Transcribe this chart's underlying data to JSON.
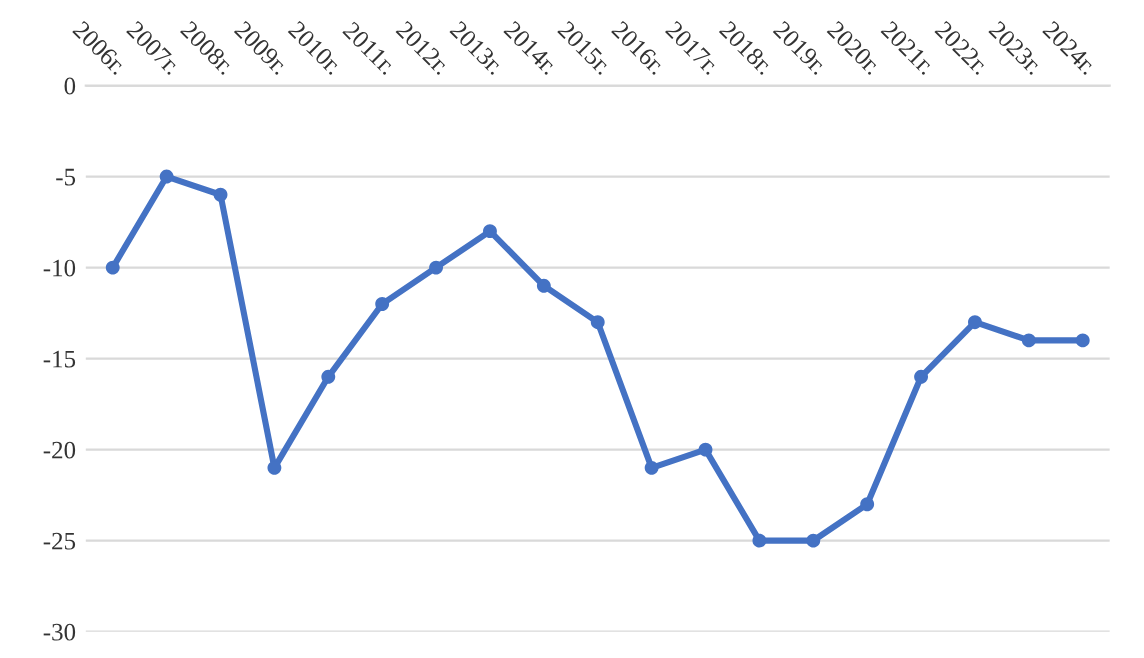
{
  "chart_data": {
    "type": "line",
    "categories": [
      "2006г.",
      "2007г.",
      "2008г.",
      "2009г.",
      "2010г.",
      "2011г.",
      "2012г.",
      "2013г.",
      "2014г.",
      "2015г.",
      "2016г.",
      "2017г.",
      "2018г.",
      "2019г.",
      "2020г.",
      "2021г.",
      "2022г.",
      "2023г.",
      "2024г."
    ],
    "series": [
      {
        "color": "#4472c4",
        "values": [
          -10,
          -5,
          -6,
          -21,
          -16,
          -12,
          -10,
          -8,
          -11,
          -13,
          -21,
          -20,
          -25,
          -25,
          -23,
          -16,
          -13,
          -14,
          -14
        ]
      }
    ],
    "ylim": [
      -30,
      0
    ],
    "yticks": [
      -30,
      -25,
      -20,
      -15,
      -10,
      -5,
      0
    ],
    "grid": "y",
    "marker": "circle",
    "line_style": "solid",
    "legend": false
  }
}
